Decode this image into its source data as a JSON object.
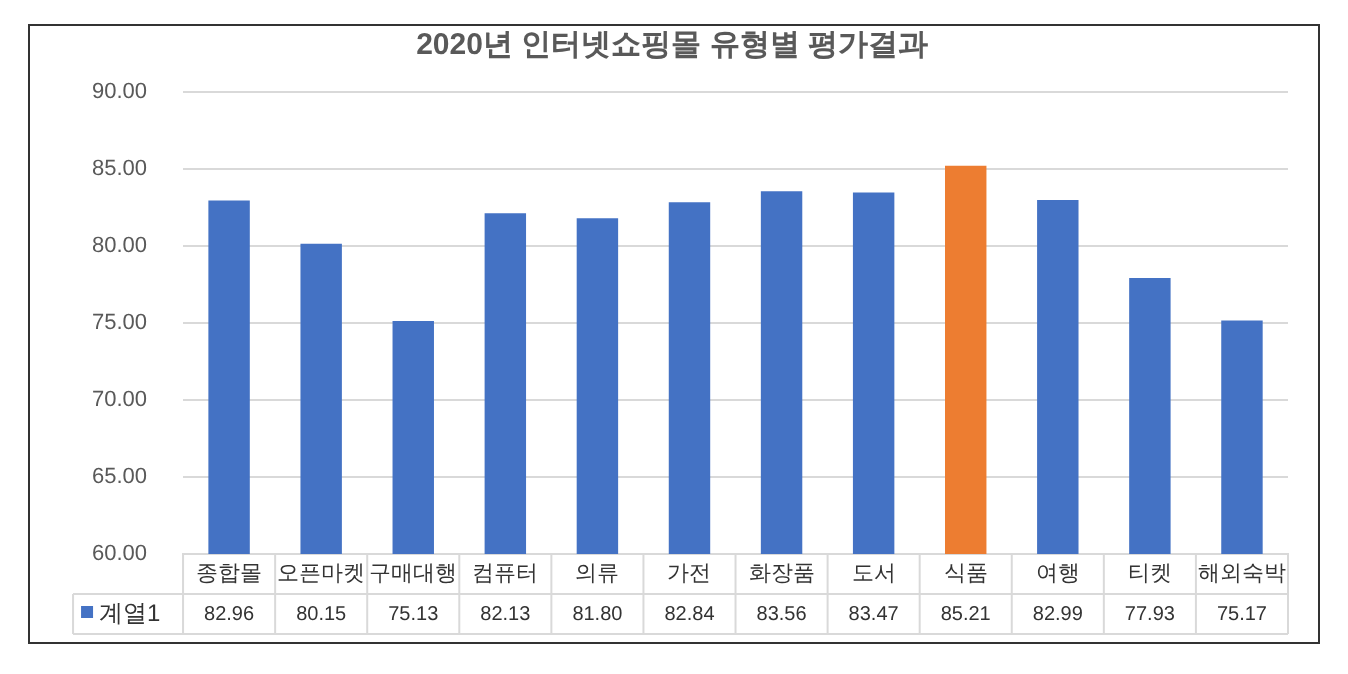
{
  "chart_data": {
    "type": "bar",
    "title": "2020년 인터넷쇼핑몰 유형별 평가결과",
    "categories": [
      "종합몰",
      "오픈마켓",
      "구매대행",
      "컴퓨터",
      "의류",
      "가전",
      "화장품",
      "도서",
      "식품",
      "여행",
      "티켓",
      "해외숙박"
    ],
    "series": [
      {
        "name": "계열1",
        "color": "#4472c4",
        "colors": [
          "#4472c4",
          "#4472c4",
          "#4472c4",
          "#4472c4",
          "#4472c4",
          "#4472c4",
          "#4472c4",
          "#4472c4",
          "#ed7d31",
          "#4472c4",
          "#4472c4",
          "#4472c4"
        ],
        "values": [
          82.96,
          80.15,
          75.13,
          82.13,
          81.8,
          82.84,
          83.56,
          83.47,
          85.21,
          82.99,
          77.93,
          75.17
        ],
        "value_labels": [
          "82.96",
          "80.15",
          "75.13",
          "82.13",
          "81.80",
          "82.84",
          "83.56",
          "83.47",
          "85.21",
          "82.99",
          "77.93",
          "75.17"
        ]
      }
    ],
    "ylim": [
      60,
      90
    ],
    "yticks": [
      {
        "value": 60,
        "label": "60.00"
      },
      {
        "value": 65,
        "label": "65.00"
      },
      {
        "value": 70,
        "label": "70.00"
      },
      {
        "value": 75,
        "label": "75.00"
      },
      {
        "value": 80,
        "label": "80.00"
      },
      {
        "value": 85,
        "label": "85.00"
      },
      {
        "value": 90,
        "label": "90.00"
      }
    ],
    "grid": "y",
    "legend": "bottom left"
  }
}
